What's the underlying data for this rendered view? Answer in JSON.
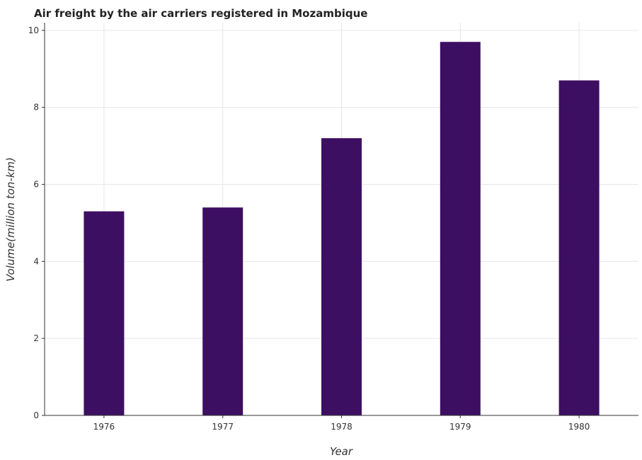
{
  "chart_data": {
    "type": "bar",
    "title": "Air freight by the air carriers registered in Mozambique",
    "xlabel": "Year",
    "ylabel": "Volume(million ton-km)",
    "categories": [
      "1976",
      "1977",
      "1978",
      "1979",
      "1980"
    ],
    "values": [
      5.3,
      5.4,
      7.2,
      9.7,
      8.7
    ],
    "ylim": [
      0,
      10.2
    ],
    "yticks": [
      "0",
      "2",
      "4",
      "6",
      "8",
      "10"
    ],
    "grid": true,
    "bar_color": "#3d0f63"
  }
}
